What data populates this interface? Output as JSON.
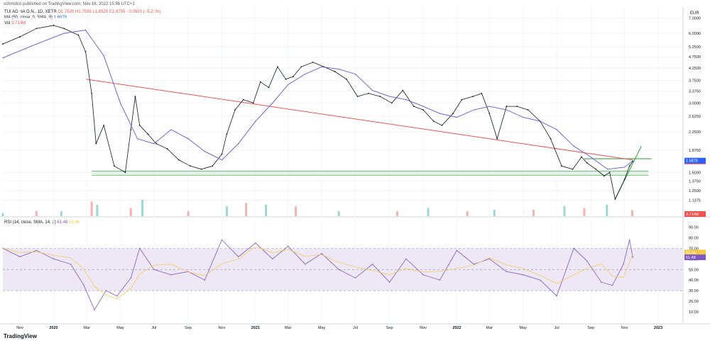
{
  "publisher": "schmidco published on TradingView.com, Nov 16, 2022 15:56 UTC+1",
  "legend": {
    "symbol": "TUI AG NA O.N., 1D, XETR",
    "ohlc": "O1.7520 H1.7565 L1.6525 C1.6755 −0.0920 (−5.21%)",
    "ma": "MA (50, close, 0, SMA, 9)",
    "ma_value": "1.6878",
    "vol": "Vol",
    "vol_value": "3.714M",
    "rsi": "RSI (14, close, SMA, 14, 2)",
    "rsi_value": "61.48",
    "rsi_ma_value": "55.96"
  },
  "currency": "EUR",
  "brand": "TradingView",
  "colors": {
    "price_line": "#131722",
    "ma_line": "#5b5bd6",
    "downtrend_line": "#ef5350",
    "support_lines": "#4caf50",
    "rsi_line": "#7e57c2",
    "rsi_ma": "#f7c844",
    "rsi_band": "#ede7f6",
    "label_red": "#ef5350",
    "label_blue": "#2962ff",
    "label_purple": "#7e57c2",
    "label_yellow": "#f7c844"
  },
  "chart_data": [
    {
      "type": "line",
      "name": "price",
      "ylabel": "EUR",
      "y_scale": "log",
      "ylim": [
        1.02,
        7.8
      ],
      "price_ticks": [
        "7.0000",
        "6.0000",
        "5.2500",
        "4.7500",
        "4.2500",
        "3.7500",
        "3.3750",
        "3.0000",
        "2.6250",
        "2.2500",
        "1.8750",
        "1.5000",
        "1.3750",
        "1.2500",
        "1.1375"
      ],
      "x_ticks": [
        "Nov",
        "2020",
        "Mar",
        "May",
        "Jul",
        "Sep",
        "Nov",
        "2021",
        "Mar",
        "May",
        "Jul",
        "Sep",
        "Nov",
        "2022",
        "Mar",
        "May",
        "Jul",
        "Sep",
        "Nov",
        "2023"
      ],
      "x_range": [
        "2019-10-01",
        "2023-02-15"
      ],
      "series": [
        {
          "x": [
            "2019-10-01",
            "2019-11-01",
            "2019-12-01",
            "2020-01-01",
            "2020-01-20",
            "2020-02-15",
            "2020-02-28",
            "2020-03-10",
            "2020-03-18",
            "2020-04-01",
            "2020-04-20",
            "2020-05-10",
            "2020-05-20",
            "2020-05-28",
            "2020-06-05",
            "2020-06-20",
            "2020-07-05",
            "2020-07-25",
            "2020-08-15",
            "2020-09-05",
            "2020-09-25",
            "2020-10-15",
            "2020-11-01",
            "2020-11-10",
            "2020-11-25",
            "2020-12-10",
            "2020-12-28",
            "2021-01-10",
            "2021-01-25",
            "2021-02-10",
            "2021-02-25",
            "2021-03-10",
            "2021-03-25",
            "2021-04-15",
            "2021-05-05",
            "2021-05-25",
            "2021-06-15",
            "2021-07-05",
            "2021-07-25",
            "2021-08-15",
            "2021-09-05",
            "2021-09-25",
            "2021-10-15",
            "2021-11-01",
            "2021-11-20",
            "2021-12-05",
            "2021-12-25",
            "2022-01-10",
            "2022-01-30",
            "2022-02-15",
            "2022-03-01",
            "2022-03-15",
            "2022-04-01",
            "2022-04-20",
            "2022-05-10",
            "2022-06-01",
            "2022-06-20",
            "2022-07-10",
            "2022-07-30",
            "2022-08-15",
            "2022-08-25",
            "2022-09-10",
            "2022-09-25",
            "2022-10-05",
            "2022-10-15",
            "2022-11-01",
            "2022-11-10",
            "2022-11-16"
          ],
          "values": [
            5.4,
            5.8,
            6.3,
            6.5,
            6.3,
            5.9,
            5.0,
            3.3,
            2.0,
            2.4,
            1.6,
            1.5,
            2.3,
            3.2,
            2.4,
            2.2,
            2.0,
            1.9,
            1.7,
            1.6,
            1.55,
            1.6,
            1.8,
            2.2,
            2.8,
            3.1,
            3.0,
            3.7,
            3.5,
            4.3,
            3.8,
            3.9,
            4.3,
            4.5,
            4.3,
            4.1,
            3.8,
            3.2,
            3.3,
            3.2,
            3.0,
            3.4,
            2.9,
            2.8,
            2.5,
            2.4,
            2.7,
            3.1,
            3.2,
            3.3,
            2.7,
            2.1,
            2.9,
            2.9,
            2.8,
            2.5,
            2.1,
            1.6,
            1.55,
            1.75,
            1.65,
            1.55,
            1.45,
            1.5,
            1.15,
            1.4,
            1.6,
            1.6755
          ]
        },
        {
          "x": [
            "2019-10-01",
            "2019-12-01",
            "2020-01-20",
            "2020-02-28",
            "2020-04-01",
            "2020-05-01",
            "2020-06-01",
            "2020-07-01",
            "2020-08-01",
            "2020-09-01",
            "2020-10-01",
            "2020-11-01",
            "2020-12-01",
            "2021-01-01",
            "2021-02-01",
            "2021-03-01",
            "2021-04-01",
            "2021-05-01",
            "2021-06-01",
            "2021-07-01",
            "2021-08-01",
            "2021-09-01",
            "2021-10-01",
            "2021-11-01",
            "2021-12-01",
            "2022-01-01",
            "2022-02-01",
            "2022-03-01",
            "2022-04-01",
            "2022-05-01",
            "2022-06-01",
            "2022-07-01",
            "2022-08-01",
            "2022-09-01",
            "2022-10-01",
            "2022-11-01",
            "2022-11-16"
          ],
          "values": [
            4.7,
            5.4,
            6.0,
            6.2,
            4.8,
            3.0,
            2.1,
            2.0,
            2.3,
            2.1,
            1.85,
            1.7,
            2.0,
            2.5,
            3.0,
            3.6,
            4.0,
            4.3,
            4.2,
            4.0,
            3.4,
            3.2,
            3.1,
            2.9,
            2.7,
            2.6,
            2.8,
            2.9,
            2.8,
            2.6,
            2.5,
            2.3,
            1.95,
            1.75,
            1.55,
            1.58,
            1.6878
          ]
        }
      ],
      "annotations": {
        "downtrend": [
          [
            "2020-02-29",
            3.8
          ],
          [
            "2022-11-16",
            1.7
          ]
        ],
        "support_zone": [
          1.46,
          1.52
        ],
        "breakout_level": 1.72
      }
    },
    {
      "type": "bar",
      "name": "volume",
      "last_value": "3.714M",
      "x": [
        "2019-10-01",
        "2019-12-01",
        "2020-01-15",
        "2020-03-10",
        "2020-03-20",
        "2020-05-20",
        "2020-06-10",
        "2020-09-01",
        "2020-11-10",
        "2020-12-15",
        "2021-01-20",
        "2021-03-15",
        "2021-06-01",
        "2021-09-15",
        "2021-11-10",
        "2022-01-20",
        "2022-03-10",
        "2022-05-20",
        "2022-07-15",
        "2022-08-20",
        "2022-09-30",
        "2022-11-15"
      ],
      "values": [
        2,
        3,
        3,
        9,
        7,
        5,
        10,
        3,
        6,
        8,
        7,
        6,
        3,
        3,
        5,
        3,
        4,
        4,
        6,
        5,
        7,
        3.7
      ]
    },
    {
      "type": "line",
      "name": "RSI",
      "ylim": [
        0,
        95
      ],
      "ticks": [
        "90.00",
        "80.00",
        "70.00",
        "60.00",
        "50.00",
        "40.00",
        "30.00",
        "20.00",
        "10.00"
      ],
      "x": [
        "2019-10-01",
        "2019-11-01",
        "2019-12-01",
        "2020-01-01",
        "2020-02-01",
        "2020-02-25",
        "2020-03-15",
        "2020-04-05",
        "2020-04-25",
        "2020-05-20",
        "2020-06-05",
        "2020-07-01",
        "2020-08-01",
        "2020-09-01",
        "2020-10-01",
        "2020-11-01",
        "2020-12-01",
        "2021-01-01",
        "2021-02-01",
        "2021-03-01",
        "2021-04-01",
        "2021-05-01",
        "2021-06-01",
        "2021-07-01",
        "2021-08-01",
        "2021-09-01",
        "2021-10-01",
        "2021-11-01",
        "2021-12-01",
        "2022-01-01",
        "2022-02-01",
        "2022-03-01",
        "2022-04-01",
        "2022-05-01",
        "2022-06-01",
        "2022-07-01",
        "2022-08-01",
        "2022-08-25",
        "2022-09-20",
        "2022-10-10",
        "2022-10-30",
        "2022-11-10",
        "2022-11-16"
      ],
      "values": [
        70,
        62,
        68,
        60,
        55,
        35,
        12,
        30,
        25,
        42,
        70,
        50,
        45,
        48,
        40,
        78,
        62,
        75,
        60,
        72,
        55,
        65,
        50,
        42,
        55,
        38,
        60,
        45,
        40,
        68,
        55,
        60,
        48,
        45,
        40,
        25,
        70,
        58,
        38,
        35,
        55,
        78,
        61.48
      ]
    }
  ]
}
